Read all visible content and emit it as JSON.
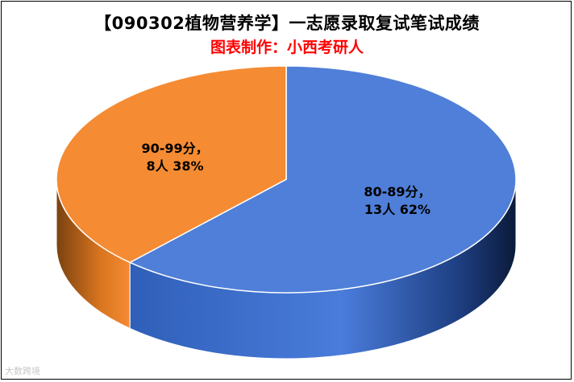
{
  "chart_data": {
    "type": "pie",
    "title": "【090302植物营养学】一志愿录取复试笔试成绩",
    "subtitle": "图表制作：小西考研人",
    "slices": [
      {
        "category": "80-89分",
        "count": 13,
        "count_label": "13人",
        "percent": 62,
        "percent_label": "62%",
        "color": "#4f7fd8"
      },
      {
        "category": "90-99分",
        "count": 8,
        "count_label": "8人",
        "percent": 38,
        "percent_label": "38%",
        "color": "#f58b33"
      }
    ],
    "style": "3d",
    "legend": "none"
  },
  "watermark": "大数跨境"
}
